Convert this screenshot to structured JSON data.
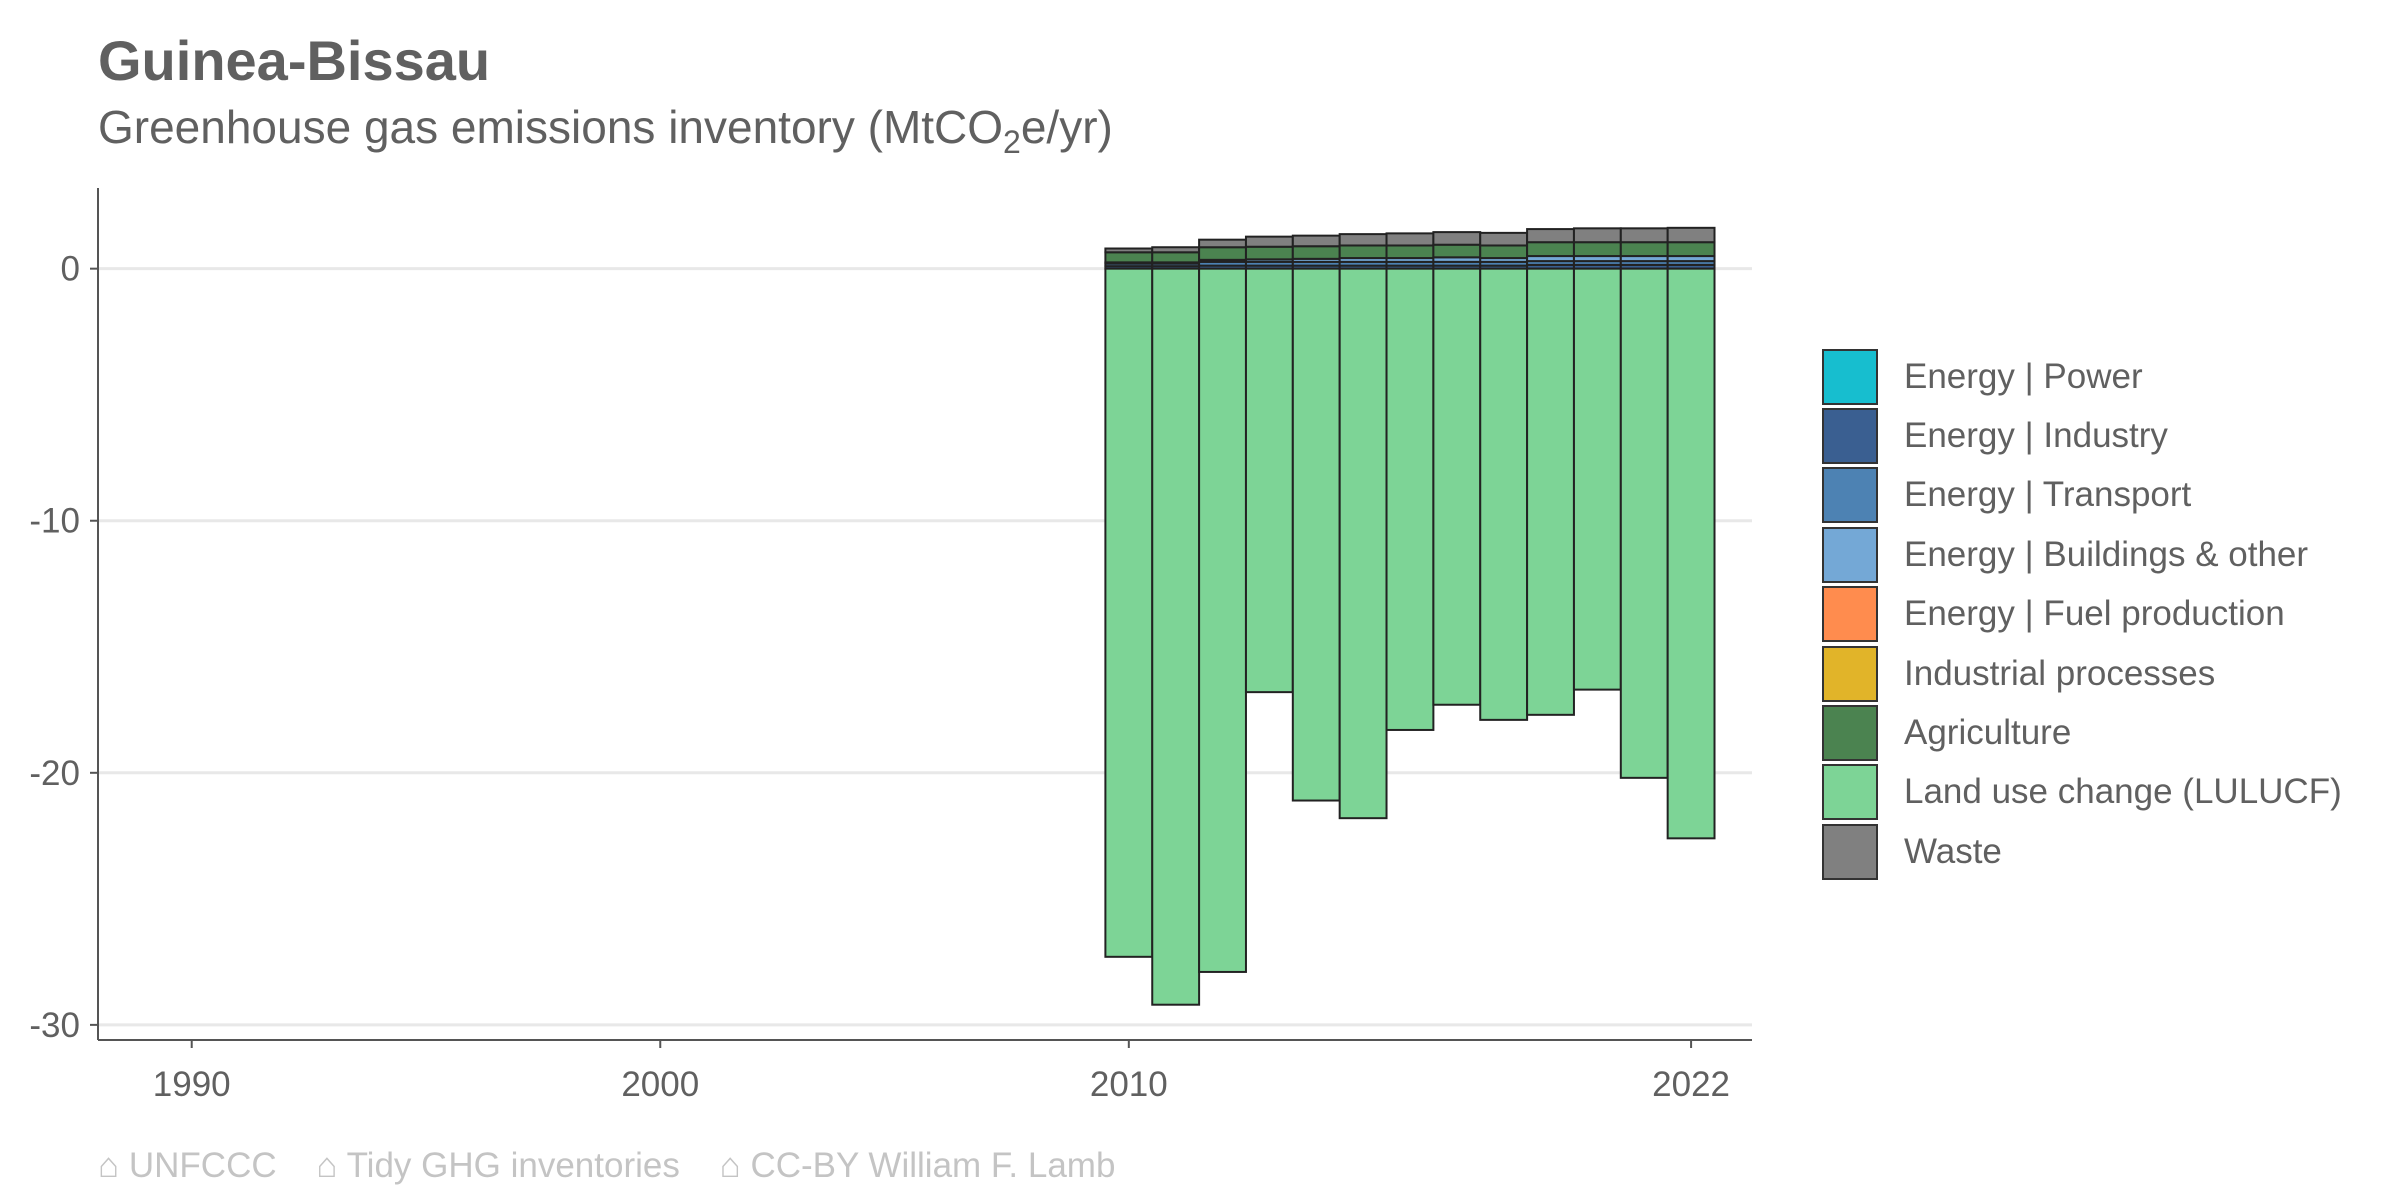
{
  "title": "Guinea-Bissau",
  "subtitle_main": "Greenhouse gas emissions inventory (MtCO",
  "subtitle_sub": "2",
  "subtitle_tail": "e/yr)",
  "caption": [
    "⌂ UNFCCC",
    "⌂ Tidy GHG inventories",
    "⌂ CC-BY William F. Lamb"
  ],
  "chart_data": {
    "type": "bar",
    "stacked": true,
    "x": [
      2010,
      2011,
      2012,
      2013,
      2014,
      2015,
      2016,
      2017,
      2018,
      2019,
      2020,
      2021,
      2022
    ],
    "xlim": [
      1988,
      2023.3
    ],
    "ylim": [
      -30.6,
      3.2
    ],
    "x_ticks": [
      1990,
      2000,
      2010,
      2022
    ],
    "y_ticks": [
      0,
      -10,
      -20,
      -30
    ],
    "x_tick_labels": [
      "1990",
      "2000",
      "2010",
      "2022"
    ],
    "y_tick_labels": [
      "0",
      "-10",
      "-20",
      "-30"
    ],
    "grid": "horizontal",
    "legend": "right",
    "series": [
      {
        "name": "Energy | Power",
        "color": "#17becf",
        "values": [
          0,
          0,
          0,
          0,
          0,
          0,
          0,
          0,
          0,
          0,
          0,
          0,
          0
        ]
      },
      {
        "name": "Energy | Industry",
        "color": "#3a5f91",
        "values": [
          0.1,
          0.1,
          0.12,
          0.12,
          0.12,
          0.12,
          0.12,
          0.12,
          0.12,
          0.15,
          0.15,
          0.15,
          0.15
        ]
      },
      {
        "name": "Energy | Transport",
        "color": "#4d82b3",
        "values": [
          0.1,
          0.1,
          0.15,
          0.15,
          0.15,
          0.15,
          0.15,
          0.15,
          0.15,
          0.15,
          0.15,
          0.15,
          0.15
        ]
      },
      {
        "name": "Energy | Buildings & other",
        "color": "#74a8d6",
        "values": [
          0.05,
          0.05,
          0.08,
          0.1,
          0.12,
          0.15,
          0.15,
          0.18,
          0.15,
          0.2,
          0.2,
          0.2,
          0.2
        ]
      },
      {
        "name": "Energy | Fuel production",
        "color": "#ff8c4e",
        "values": [
          0,
          0,
          0,
          0,
          0,
          0,
          0,
          0,
          0,
          0,
          0,
          0,
          0
        ]
      },
      {
        "name": "Industrial processes",
        "color": "#e1b429",
        "values": [
          0,
          0,
          0,
          0,
          0,
          0,
          0,
          0,
          0,
          0,
          0,
          0,
          0
        ]
      },
      {
        "name": "Agriculture",
        "color": "#4b8350",
        "values": [
          0.4,
          0.4,
          0.5,
          0.5,
          0.5,
          0.5,
          0.5,
          0.5,
          0.5,
          0.55,
          0.55,
          0.55,
          0.55
        ]
      },
      {
        "name": "Land use change (LULUCF)",
        "color": "#7dd496",
        "values": [
          -27.3,
          -29.2,
          -27.9,
          -16.8,
          -21.1,
          -21.8,
          -18.3,
          -17.3,
          -17.9,
          -17.7,
          -16.7,
          -20.2,
          -22.6
        ]
      },
      {
        "name": "Waste",
        "color": "#808080",
        "values": [
          0.15,
          0.2,
          0.3,
          0.4,
          0.42,
          0.45,
          0.48,
          0.5,
          0.5,
          0.52,
          0.55,
          0.55,
          0.57
        ]
      }
    ]
  }
}
